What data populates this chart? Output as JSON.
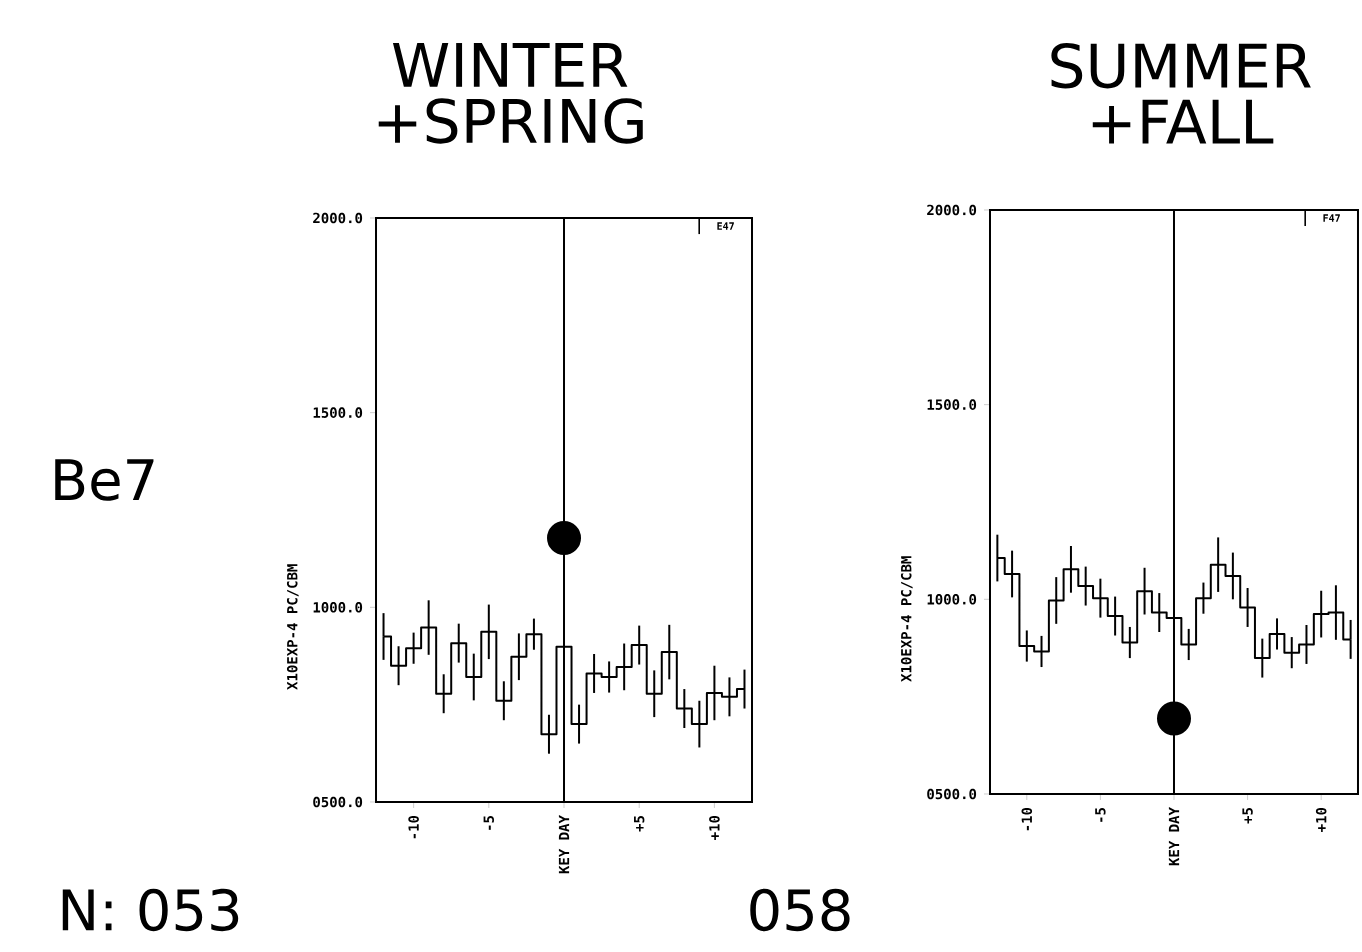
{
  "chart_data": [
    {
      "type": "step",
      "title": "WINTER +SPRING",
      "ylabel": "X10EXP-4 PC/CBM",
      "xlim": [
        -12.5,
        12.5
      ],
      "ylim": [
        500,
        2000
      ],
      "xticks": [
        -10,
        -5,
        {
          "value": 0,
          "label": "KEY DAY"
        },
        {
          "value": 5,
          "label": "+5"
        },
        {
          "value": 10,
          "label": "+10"
        }
      ],
      "yticks": [
        {
          "value": 500,
          "label": "0500.0"
        },
        {
          "value": 1000,
          "label": "1000.0"
        },
        {
          "value": 1500,
          "label": "1500.0"
        },
        {
          "value": 2000,
          "label": "2000.0"
        }
      ],
      "series": [
        {
          "color": "#000000",
          "marker": "none",
          "x": [
            -12,
            -11,
            -10,
            -9,
            -8,
            -7,
            -6,
            -5,
            -4,
            -3,
            -2,
            -1,
            0,
            1,
            2,
            3,
            4,
            5,
            6,
            7,
            8,
            9,
            10,
            11,
            12
          ],
          "values": [
            925,
            850,
            895,
            948,
            778,
            908,
            821,
            937,
            760,
            873,
            931,
            674,
            899,
            700,
            830,
            821,
            847,
            903,
            778,
            885,
            740,
            700,
            780,
            770,
            790
          ],
          "errors": [
            60,
            50,
            40,
            70,
            50,
            50,
            60,
            70,
            50,
            60,
            40,
            50,
            80,
            50,
            50,
            40,
            60,
            50,
            60,
            70,
            50,
            60,
            70,
            50,
            50
          ]
        },
        {
          "type": "scatter",
          "color": "#000000",
          "marker": "circle",
          "x": [
            0
          ],
          "values": [
            1178
          ]
        }
      ],
      "ref_lines": [
        {
          "axis": "x",
          "value": 0
        }
      ],
      "annotations": [
        "Be7",
        "N: 053",
        "E47"
      ]
    },
    {
      "type": "step",
      "title": "SUMMER +FALL",
      "ylabel": "X10EXP-4 PC/CBM",
      "xlim": [
        -12.5,
        12.5
      ],
      "ylim": [
        500,
        2000
      ],
      "xticks": [
        -10,
        -5,
        {
          "value": 0,
          "label": "KEY DAY"
        },
        {
          "value": 5,
          "label": "+5"
        },
        {
          "value": 10,
          "label": "+10"
        }
      ],
      "yticks": [
        {
          "value": 500,
          "label": "0500.0"
        },
        {
          "value": 1000,
          "label": "1000.0"
        },
        {
          "value": 1500,
          "label": "1500.0"
        },
        {
          "value": 2000,
          "label": "2000.0"
        }
      ],
      "series": [
        {
          "color": "#000000",
          "marker": "none",
          "x": [
            -12,
            -11,
            -10,
            -9,
            -8,
            -7,
            -6,
            -5,
            -4,
            -3,
            -2,
            -1,
            0,
            1,
            2,
            3,
            4,
            5,
            6,
            7,
            8,
            9,
            10,
            11,
            12
          ],
          "values": [
            1106,
            1065,
            880,
            866,
            997,
            1077,
            1034,
            1003,
            957,
            889,
            1021,
            966,
            952,
            884,
            1003,
            1089,
            1060,
            979,
            849,
            911,
            863,
            884,
            962,
            966,
            897
          ],
          "errors": [
            60,
            60,
            40,
            40,
            60,
            60,
            50,
            50,
            50,
            40,
            60,
            50,
            50,
            40,
            40,
            70,
            60,
            50,
            50,
            40,
            40,
            50,
            60,
            70,
            50
          ]
        },
        {
          "type": "scatter",
          "color": "#000000",
          "marker": "circle",
          "x": [
            0
          ],
          "values": [
            694
          ]
        }
      ],
      "ref_lines": [
        {
          "axis": "x",
          "value": 0
        }
      ],
      "annotations": [
        "058",
        "F47"
      ]
    }
  ]
}
